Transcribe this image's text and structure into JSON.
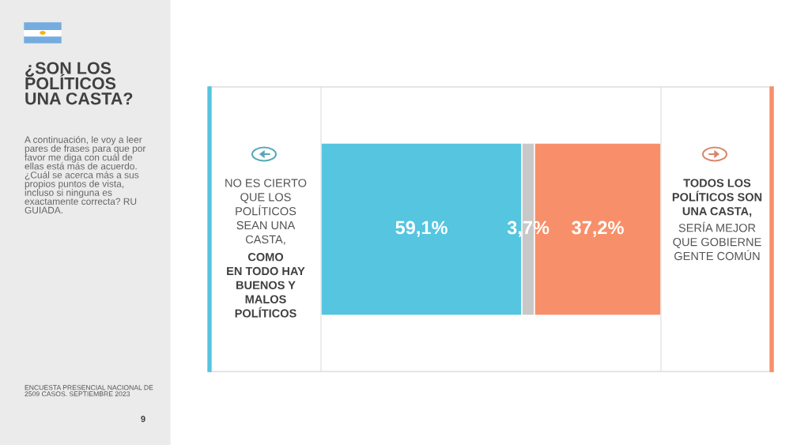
{
  "chart_data": {
    "type": "bar",
    "orientation": "horizontal",
    "stacked": true,
    "title": "¿SON LOS\nPOLÍTICOS\nUNA CASTA?",
    "categories": [
      null
    ],
    "series": [
      {
        "color": "#55c5e0",
        "values": [
          59.1
        ],
        "value_labels": [
          "59,1%"
        ]
      },
      {
        "color": "#c8c8c8",
        "values": [
          3.7
        ],
        "value_labels": [
          "3,7%"
        ]
      },
      {
        "color": "#f7906a",
        "values": [
          37.2
        ],
        "value_labels": [
          "37,2%"
        ]
      }
    ],
    "xlim": [
      0,
      100
    ],
    "tick_labels": false,
    "annotations": [
      "A continuación, le voy a leer\npares de frases para que por\nfavor me diga con cuál de\nellas está más de acuerdo.\n¿Cuál se acerca más a sus\npropios puntos de vista,\nincluso si ninguna es\nexactamente correcta? RU\nGUIADA.",
      "NO ES CIERTO\nQUE LOS\nPOLÍTICOS\nSEAN UNA\nCASTA,",
      "COMO\nEN TODO HAY\nBUENOS Y\nMALOS\nPOLÍTICOS",
      "TODOS LOS\nPOLÍTICOS SON\nUNA CASTA,",
      "SERÍA MEJOR\nQUE GOBIERNE\nGENTE COMÚN",
      "ENCUESTA PRESENCIAL NACIONAL DE\n2509 CASOS. SEPTIEMBRE 2023",
      "9"
    ]
  }
}
